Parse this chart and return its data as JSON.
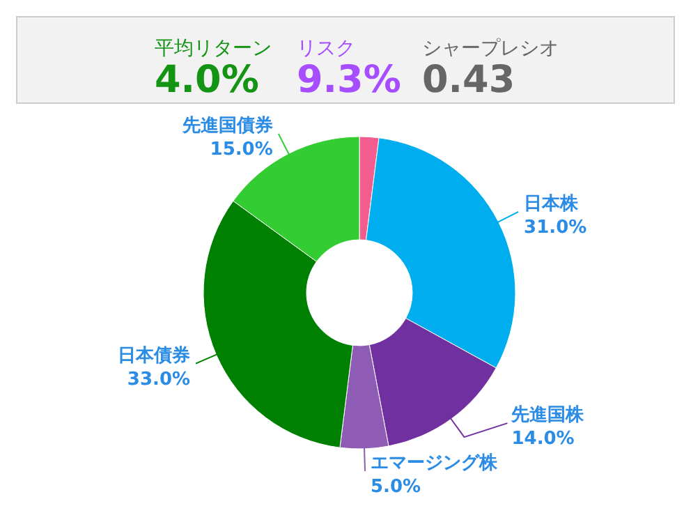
{
  "chart_data": [
    {
      "type": "other",
      "annotations": [
        "平均リターン",
        "4.0%",
        "リスク",
        "9.3%",
        "シャープレシオ",
        "0.43"
      ]
    },
    {
      "type": "donut",
      "categories": [
        null,
        "日本株",
        "先進国株",
        "エマージング株",
        "日本債券",
        "先進国債券"
      ],
      "values": [
        2,
        31,
        14,
        5,
        33,
        15
      ],
      "colors": [
        "#f25c8f",
        "#00aeef",
        "#7030a0",
        "#8e5bb5",
        "#008000",
        "#33cc33"
      ],
      "value_labels": [
        null,
        "31.0%",
        "14.0%",
        "5.0%",
        "33.0%",
        "15.0%"
      ]
    }
  ]
}
